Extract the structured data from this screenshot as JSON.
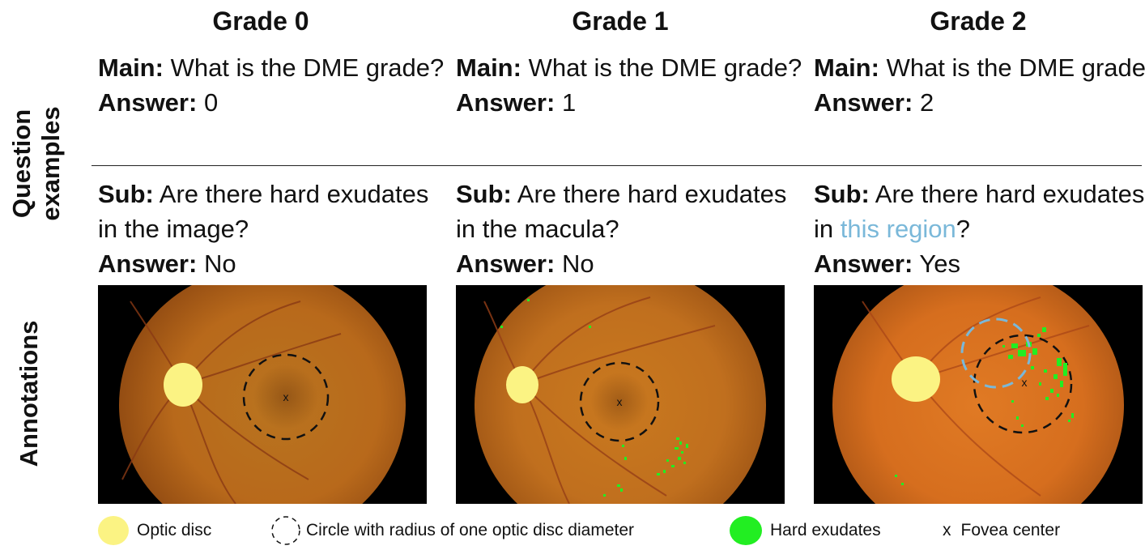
{
  "row_labels": {
    "question": "Question\nexamples",
    "question_line1": "Question",
    "question_line2": "examples",
    "annotations": "Annotations"
  },
  "columns": [
    {
      "title": "Grade 0",
      "main_label": "Main:",
      "main_text": "What is the DME grade?",
      "answer_label": "Answer:",
      "main_answer": "0",
      "sub_label": "Sub:",
      "sub_text": "Are there hard exudates in the image?",
      "sub_answer": "No"
    },
    {
      "title": "Grade 1",
      "main_label": "Main:",
      "main_text": "What is the DME grade?",
      "answer_label": "Answer:",
      "main_answer": "1",
      "sub_label": "Sub:",
      "sub_text": "Are there hard exudates in the macula?",
      "sub_answer": "No"
    },
    {
      "title": "Grade 2",
      "main_label": "Main:",
      "main_text": "What is the DME grade?",
      "answer_label": "Answer:",
      "main_answer": "2",
      "sub_label": "Sub:",
      "sub_text_prefix": "Are there hard exudates in",
      "sub_text_highlight": "this region",
      "sub_text_suffix": "?",
      "sub_answer": "Yes"
    }
  ],
  "legend": {
    "optic_disc": "Optic disc",
    "circle": "Circle with radius of one optic disc diameter",
    "hard_exudates": "Hard exudates",
    "fovea_marker": "x",
    "fovea": "Fovea center"
  },
  "fovea_symbol": "x",
  "colors": {
    "optic_disc": "#fbf383",
    "hard_exudates": "#22ee22",
    "region_highlight": "#7ab8d9",
    "fundus": "#c8681e"
  }
}
